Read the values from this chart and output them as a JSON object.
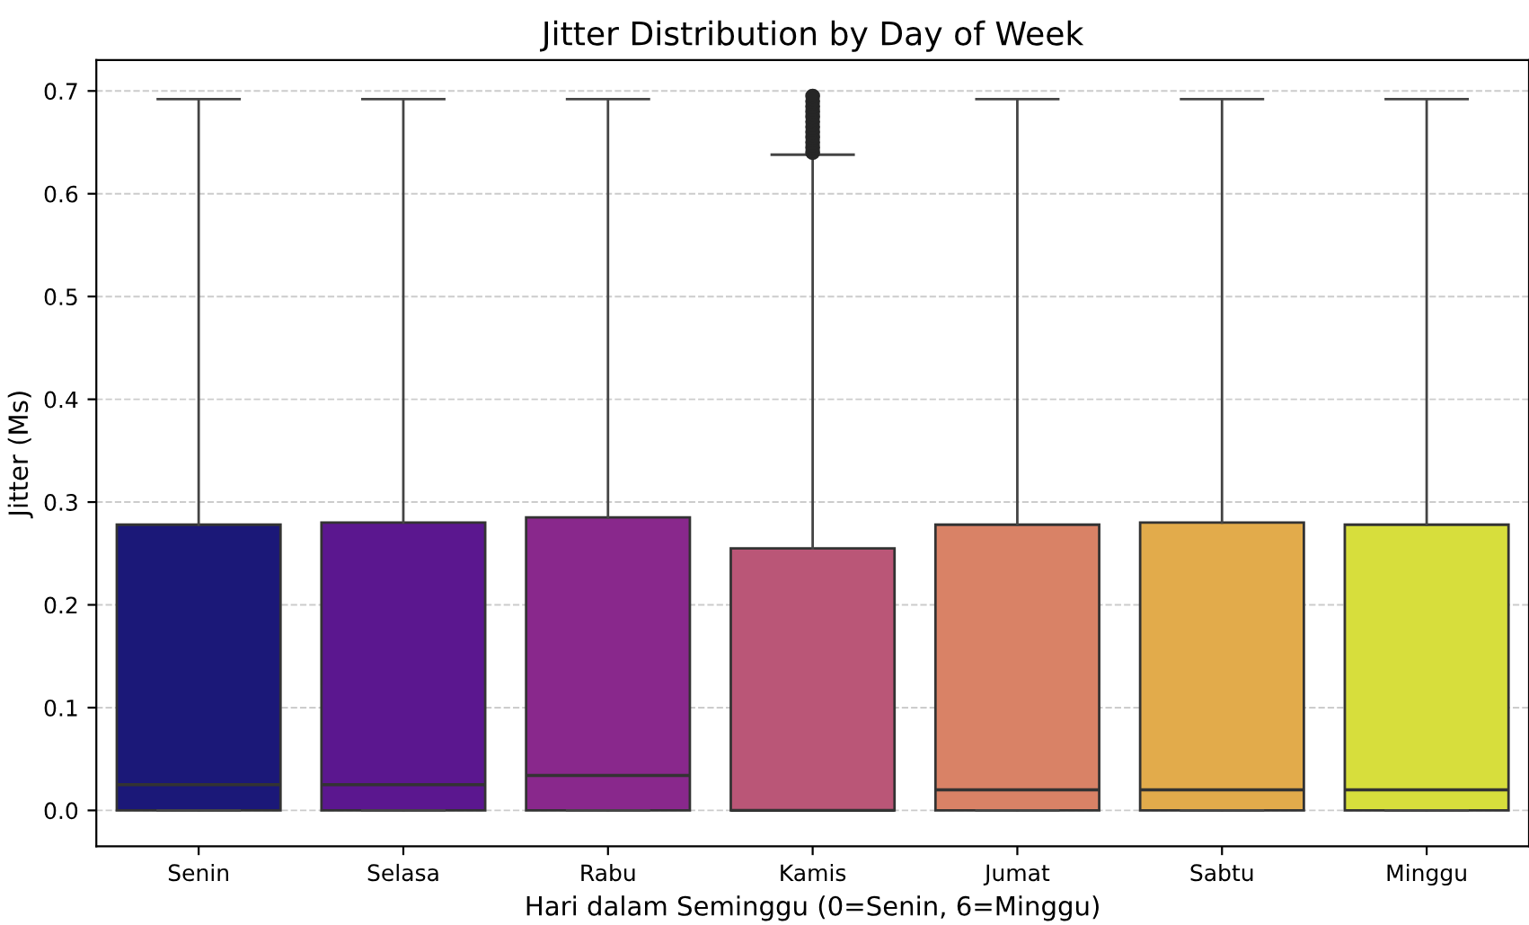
{
  "chart_data": {
    "type": "box",
    "title": "Jitter Distribution by Day of Week",
    "xlabel": "Hari dalam Seminggu (0=Senin, 6=Minggu)",
    "ylabel": "Jitter (Ms)",
    "categories": [
      "Senin",
      "Selasa",
      "Rabu",
      "Kamis",
      "Jumat",
      "Sabtu",
      "Minggu"
    ],
    "colors": [
      "#1b1878",
      "#5b178f",
      "#89288c",
      "#ba5677",
      "#d98266",
      "#e2ab4b",
      "#d7de3c"
    ],
    "boxes": [
      {
        "low": 0,
        "q1": 0,
        "median": 0.025,
        "q3": 0.278,
        "high": 0.692
      },
      {
        "low": 0,
        "q1": 0,
        "median": 0.025,
        "q3": 0.28,
        "high": 0.692
      },
      {
        "low": 0,
        "q1": 0,
        "median": 0.034,
        "q3": 0.285,
        "high": 0.692
      },
      {
        "low": 0,
        "q1": 0,
        "median": 0,
        "q3": 0.255,
        "high": 0.638,
        "outliers": [
          0.64,
          0.645,
          0.65,
          0.655,
          0.66,
          0.665,
          0.67,
          0.675,
          0.68,
          0.685,
          0.69,
          0.695
        ]
      },
      {
        "low": 0,
        "q1": 0,
        "median": 0.02,
        "q3": 0.278,
        "high": 0.692
      },
      {
        "low": 0,
        "q1": 0,
        "median": 0.02,
        "q3": 0.28,
        "high": 0.692
      },
      {
        "low": 0,
        "q1": 0,
        "median": 0.02,
        "q3": 0.278,
        "high": 0.692
      }
    ],
    "ylim": [
      -0.035,
      0.73
    ],
    "yticks": [
      {
        "value": 0,
        "label": "0.0"
      },
      0.1,
      0.2,
      0.3,
      0.4,
      0.5,
      0.6,
      0.7
    ],
    "grid": "y"
  }
}
